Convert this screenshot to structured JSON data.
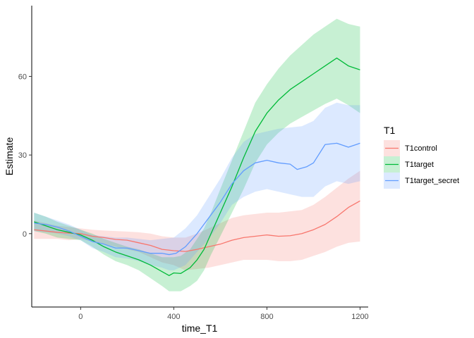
{
  "chart_data": {
    "type": "line",
    "xlabel": "time_T1",
    "ylabel": "Estimate",
    "xlim": [
      -210,
      1235
    ],
    "ylim": [
      -28,
      87
    ],
    "x_ticks": [
      0,
      400,
      800,
      1200
    ],
    "y_ticks": [
      0,
      30,
      60
    ],
    "grid": false,
    "legend": {
      "title": "T1",
      "placement": "right",
      "entries": [
        "T1control",
        "T1target",
        "T1target_secret"
      ]
    },
    "series": [
      {
        "name": "T1control",
        "color": "#F8766D",
        "fill": "#F8766D",
        "points": [
          [
            -200,
            1.5
          ],
          [
            -150,
            1.0
          ],
          [
            -100,
            0.5
          ],
          [
            -50,
            0.2
          ],
          [
            0,
            0.0
          ],
          [
            50,
            -1.0
          ],
          [
            100,
            -1.5
          ],
          [
            150,
            -2.2
          ],
          [
            200,
            -2.5
          ],
          [
            250,
            -3.5
          ],
          [
            300,
            -4.5
          ],
          [
            350,
            -6.0
          ],
          [
            400,
            -6.5
          ],
          [
            450,
            -6.8
          ],
          [
            500,
            -6.0
          ],
          [
            550,
            -5.0
          ],
          [
            600,
            -4.0
          ],
          [
            650,
            -2.5
          ],
          [
            700,
            -1.5
          ],
          [
            750,
            -1.0
          ],
          [
            800,
            -0.5
          ],
          [
            850,
            -1.0
          ],
          [
            900,
            -0.8
          ],
          [
            950,
            0.0
          ],
          [
            1000,
            1.5
          ],
          [
            1050,
            3.5
          ],
          [
            1100,
            6.5
          ],
          [
            1150,
            10.0
          ],
          [
            1200,
            12.5
          ]
        ],
        "upper": [
          [
            -200,
            5.0
          ],
          [
            -150,
            4.0
          ],
          [
            -100,
            3.0
          ],
          [
            -50,
            2.5
          ],
          [
            0,
            2.0
          ],
          [
            50,
            1.5
          ],
          [
            100,
            1.2
          ],
          [
            150,
            1.0
          ],
          [
            200,
            0.8
          ],
          [
            250,
            0.5
          ],
          [
            300,
            0.0
          ],
          [
            350,
            -1.0
          ],
          [
            400,
            -1.5
          ],
          [
            450,
            -1.5
          ],
          [
            500,
            0.0
          ],
          [
            550,
            2.0
          ],
          [
            600,
            4.0
          ],
          [
            650,
            6.0
          ],
          [
            700,
            7.0
          ],
          [
            750,
            7.5
          ],
          [
            800,
            8.0
          ],
          [
            850,
            8.0
          ],
          [
            900,
            8.5
          ],
          [
            950,
            9.0
          ],
          [
            1000,
            11.0
          ],
          [
            1050,
            14.0
          ],
          [
            1100,
            17.5
          ],
          [
            1150,
            21.0
          ],
          [
            1200,
            24.0
          ]
        ],
        "lower": [
          [
            -200,
            -2.0
          ],
          [
            -150,
            -2.0
          ],
          [
            -100,
            -2.0
          ],
          [
            -50,
            -2.5
          ],
          [
            0,
            -2.0
          ],
          [
            50,
            -3.0
          ],
          [
            100,
            -4.0
          ],
          [
            150,
            -5.0
          ],
          [
            200,
            -6.0
          ],
          [
            250,
            -7.0
          ],
          [
            300,
            -9.0
          ],
          [
            350,
            -11.0
          ],
          [
            400,
            -12.0
          ],
          [
            450,
            -14.0
          ],
          [
            500,
            -13.5
          ],
          [
            550,
            -13.0
          ],
          [
            600,
            -12.0
          ],
          [
            650,
            -11.0
          ],
          [
            700,
            -10.0
          ],
          [
            750,
            -10.0
          ],
          [
            800,
            -10.0
          ],
          [
            850,
            -10.5
          ],
          [
            900,
            -10.5
          ],
          [
            950,
            -10.0
          ],
          [
            1000,
            -8.5
          ],
          [
            1050,
            -7.0
          ],
          [
            1100,
            -5.0
          ],
          [
            1150,
            -3.5
          ],
          [
            1200,
            -3.0
          ]
        ]
      },
      {
        "name": "T1target",
        "color": "#00BA38",
        "fill": "#00BA38",
        "points": [
          [
            -200,
            4.5
          ],
          [
            -150,
            3.0
          ],
          [
            -100,
            1.5
          ],
          [
            -50,
            0.5
          ],
          [
            0,
            -0.5
          ],
          [
            50,
            -2.5
          ],
          [
            100,
            -5.0
          ],
          [
            150,
            -7.0
          ],
          [
            200,
            -8.5
          ],
          [
            250,
            -10.0
          ],
          [
            300,
            -12.0
          ],
          [
            350,
            -14.5
          ],
          [
            380,
            -16.0
          ],
          [
            400,
            -15.0
          ],
          [
            430,
            -15.2
          ],
          [
            470,
            -13.0
          ],
          [
            500,
            -10.0
          ],
          [
            530,
            -6.0
          ],
          [
            560,
            0.0
          ],
          [
            600,
            8.0
          ],
          [
            650,
            18.0
          ],
          [
            700,
            29.0
          ],
          [
            750,
            39.0
          ],
          [
            800,
            46.0
          ],
          [
            850,
            51.0
          ],
          [
            900,
            55.0
          ],
          [
            950,
            58.0
          ],
          [
            1000,
            61.0
          ],
          [
            1050,
            64.0
          ],
          [
            1100,
            67.0
          ],
          [
            1150,
            64.0
          ],
          [
            1200,
            62.5
          ]
        ],
        "upper": [
          [
            -200,
            8.0
          ],
          [
            -150,
            6.5
          ],
          [
            -100,
            4.5
          ],
          [
            -50,
            3.0
          ],
          [
            0,
            1.5
          ],
          [
            50,
            0.0
          ],
          [
            100,
            -2.0
          ],
          [
            150,
            -3.5
          ],
          [
            200,
            -5.0
          ],
          [
            250,
            -6.0
          ],
          [
            300,
            -7.5
          ],
          [
            350,
            -9.0
          ],
          [
            400,
            -9.0
          ],
          [
            430,
            -8.5
          ],
          [
            470,
            -6.0
          ],
          [
            500,
            -2.0
          ],
          [
            530,
            2.0
          ],
          [
            560,
            8.0
          ],
          [
            600,
            17.0
          ],
          [
            650,
            28.0
          ],
          [
            700,
            39.0
          ],
          [
            750,
            50.0
          ],
          [
            800,
            57.0
          ],
          [
            850,
            63.0
          ],
          [
            900,
            68.0
          ],
          [
            950,
            72.0
          ],
          [
            1000,
            76.0
          ],
          [
            1050,
            79.0
          ],
          [
            1100,
            82.0
          ],
          [
            1150,
            80.0
          ],
          [
            1200,
            79.0
          ]
        ],
        "lower": [
          [
            -200,
            1.0
          ],
          [
            -150,
            0.0
          ],
          [
            -100,
            -1.5
          ],
          [
            -50,
            -2.0
          ],
          [
            0,
            -2.5
          ],
          [
            50,
            -5.0
          ],
          [
            100,
            -8.0
          ],
          [
            150,
            -10.5
          ],
          [
            200,
            -12.0
          ],
          [
            250,
            -14.0
          ],
          [
            300,
            -17.0
          ],
          [
            350,
            -20.0
          ],
          [
            380,
            -22.0
          ],
          [
            400,
            -22.0
          ],
          [
            430,
            -22.0
          ],
          [
            470,
            -20.0
          ],
          [
            500,
            -18.0
          ],
          [
            530,
            -14.0
          ],
          [
            560,
            -8.0
          ],
          [
            600,
            -1.0
          ],
          [
            650,
            8.0
          ],
          [
            700,
            17.0
          ],
          [
            750,
            27.0
          ],
          [
            800,
            34.0
          ],
          [
            850,
            38.5
          ],
          [
            900,
            42.0
          ],
          [
            950,
            44.5
          ],
          [
            1000,
            47.0
          ],
          [
            1050,
            49.5
          ],
          [
            1100,
            51.5
          ],
          [
            1150,
            49.0
          ],
          [
            1200,
            46.0
          ]
        ]
      },
      {
        "name": "T1target_secret",
        "color": "#619CFF",
        "fill": "#619CFF",
        "points": [
          [
            -200,
            4.0
          ],
          [
            -150,
            3.5
          ],
          [
            -100,
            2.5
          ],
          [
            -50,
            1.0
          ],
          [
            0,
            -1.0
          ],
          [
            50,
            -3.0
          ],
          [
            100,
            -4.0
          ],
          [
            150,
            -5.5
          ],
          [
            200,
            -5.5
          ],
          [
            250,
            -6.5
          ],
          [
            300,
            -7.5
          ],
          [
            350,
            -7.5
          ],
          [
            380,
            -8.0
          ],
          [
            410,
            -7.5
          ],
          [
            450,
            -5.0
          ],
          [
            500,
            0.0
          ],
          [
            550,
            6.0
          ],
          [
            600,
            12.0
          ],
          [
            650,
            19.0
          ],
          [
            700,
            24.0
          ],
          [
            750,
            27.0
          ],
          [
            800,
            28.0
          ],
          [
            850,
            27.0
          ],
          [
            900,
            26.5
          ],
          [
            930,
            24.5
          ],
          [
            970,
            25.5
          ],
          [
            1000,
            27.0
          ],
          [
            1050,
            34.0
          ],
          [
            1100,
            34.5
          ],
          [
            1150,
            33.0
          ],
          [
            1200,
            34.5
          ]
        ],
        "upper": [
          [
            -200,
            8.0
          ],
          [
            -150,
            6.5
          ],
          [
            -100,
            5.0
          ],
          [
            -50,
            3.5
          ],
          [
            0,
            1.5
          ],
          [
            50,
            -0.5
          ],
          [
            100,
            -1.0
          ],
          [
            150,
            -1.5
          ],
          [
            200,
            -1.5
          ],
          [
            250,
            -2.0
          ],
          [
            300,
            -2.5
          ],
          [
            350,
            -2.0
          ],
          [
            400,
            -1.5
          ],
          [
            450,
            2.0
          ],
          [
            500,
            7.0
          ],
          [
            550,
            14.0
          ],
          [
            600,
            21.0
          ],
          [
            650,
            29.0
          ],
          [
            700,
            35.0
          ],
          [
            750,
            38.0
          ],
          [
            800,
            39.0
          ],
          [
            850,
            40.0
          ],
          [
            900,
            40.5
          ],
          [
            950,
            41.0
          ],
          [
            1000,
            43.0
          ],
          [
            1050,
            48.0
          ],
          [
            1100,
            50.0
          ],
          [
            1150,
            49.0
          ],
          [
            1200,
            49.0
          ]
        ],
        "lower": [
          [
            -200,
            1.0
          ],
          [
            -150,
            0.5
          ],
          [
            -100,
            0.0
          ],
          [
            -50,
            -1.0
          ],
          [
            0,
            -2.5
          ],
          [
            50,
            -5.5
          ],
          [
            100,
            -7.0
          ],
          [
            150,
            -9.0
          ],
          [
            200,
            -9.5
          ],
          [
            250,
            -10.5
          ],
          [
            300,
            -12.0
          ],
          [
            350,
            -13.0
          ],
          [
            380,
            -14.0
          ],
          [
            400,
            -14.0
          ],
          [
            450,
            -12.0
          ],
          [
            500,
            -7.0
          ],
          [
            550,
            -2.0
          ],
          [
            600,
            4.0
          ],
          [
            650,
            11.0
          ],
          [
            700,
            14.0
          ],
          [
            750,
            16.0
          ],
          [
            800,
            17.0
          ],
          [
            850,
            16.0
          ],
          [
            900,
            15.0
          ],
          [
            950,
            14.0
          ],
          [
            1000,
            14.0
          ],
          [
            1050,
            18.0
          ],
          [
            1100,
            20.0
          ],
          [
            1150,
            19.0
          ],
          [
            1200,
            20.0
          ]
        ]
      }
    ]
  }
}
